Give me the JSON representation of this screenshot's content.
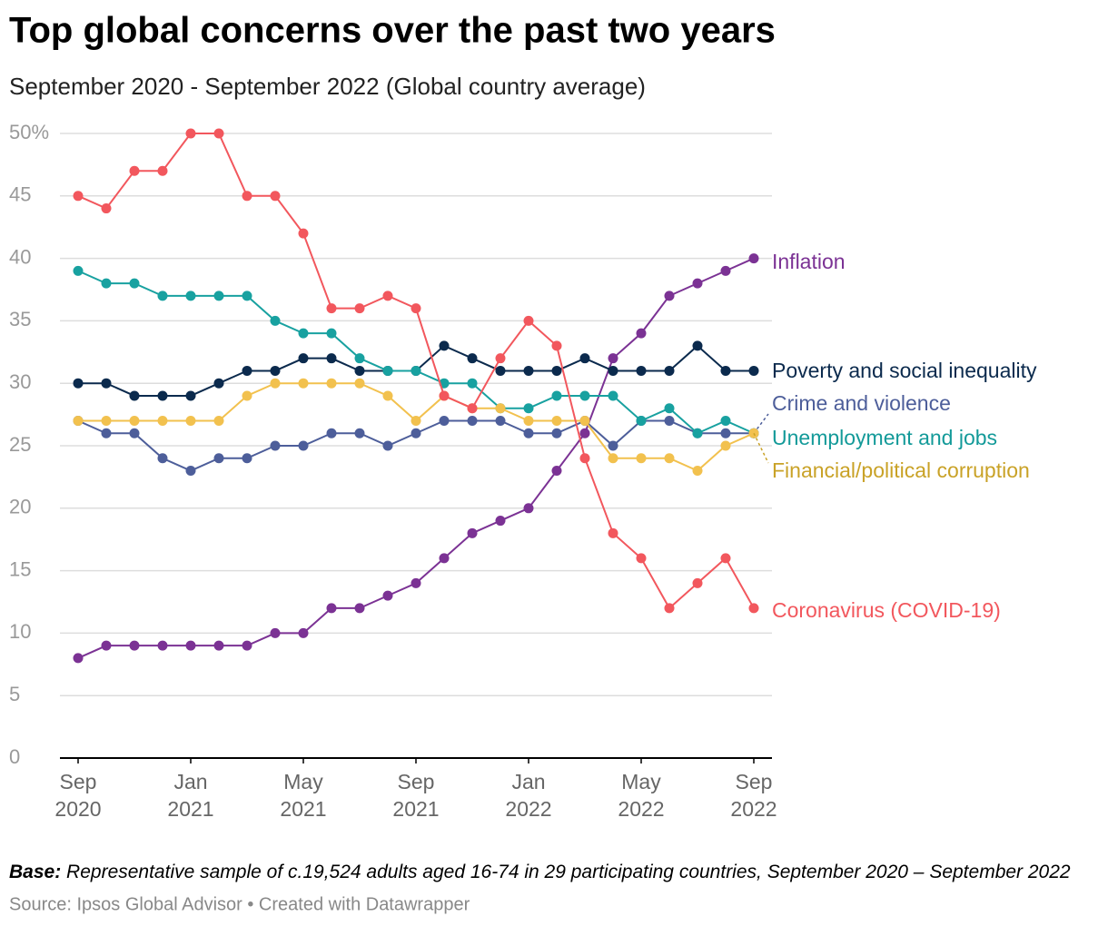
{
  "chart_data": {
    "type": "line",
    "title": "Top global concerns over the past two years",
    "subtitle": "September 2020 - September 2022 (Global country average)",
    "categories": [
      "Sep 2020",
      null,
      null,
      null,
      "Jan 2021",
      null,
      null,
      null,
      "May 2021",
      null,
      null,
      null,
      "Sep 2021",
      null,
      null,
      null,
      "Jan 2022",
      null,
      null,
      null,
      "May 2022",
      null,
      null,
      null,
      "Sep 2022"
    ],
    "ylim": [
      0,
      50
    ],
    "yticks": [
      0,
      5,
      10,
      15,
      20,
      25,
      30,
      35,
      40,
      45,
      {
        "value": 50,
        "label": "50%"
      }
    ],
    "grid": true,
    "series": [
      {
        "name": "Inflation",
        "color": "#7b3294",
        "values": [
          8,
          9,
          9,
          9,
          9,
          9,
          9,
          10,
          10,
          12,
          12,
          13,
          14,
          16,
          18,
          19,
          20,
          23,
          26,
          32,
          34,
          37,
          38,
          39,
          40
        ]
      },
      {
        "name": "Poverty and social inequality",
        "color": "#0b2a4d",
        "values": [
          30,
          30,
          29,
          29,
          29,
          30,
          31,
          31,
          32,
          32,
          31,
          31,
          31,
          33,
          32,
          31,
          31,
          31,
          32,
          31,
          31,
          31,
          33,
          31,
          31
        ]
      },
      {
        "name": "Crime and violence",
        "color": "#4d5e9a",
        "values": [
          27,
          26,
          26,
          24,
          23,
          24,
          24,
          25,
          25,
          26,
          26,
          25,
          26,
          27,
          27,
          27,
          26,
          26,
          27,
          25,
          27,
          27,
          26,
          26,
          26
        ]
      },
      {
        "name": "Unemployment and jobs",
        "color": "#18a1a0",
        "values": [
          39,
          38,
          38,
          37,
          37,
          37,
          37,
          35,
          34,
          34,
          32,
          31,
          31,
          30,
          30,
          28,
          28,
          29,
          29,
          29,
          27,
          28,
          26,
          27,
          26
        ]
      },
      {
        "name": "Financial/political corruption",
        "color": "#f2c14e",
        "values": [
          27,
          27,
          27,
          27,
          27,
          27,
          29,
          30,
          30,
          30,
          30,
          29,
          27,
          29,
          28,
          28,
          27,
          27,
          27,
          24,
          24,
          24,
          23,
          25,
          26
        ]
      },
      {
        "name": "Coronavirus (COVID-19)",
        "color": "#f2575d",
        "values": [
          45,
          44,
          47,
          47,
          50,
          50,
          45,
          45,
          42,
          36,
          36,
          37,
          36,
          29,
          28,
          32,
          35,
          33,
          24,
          18,
          16,
          12,
          14,
          16,
          12
        ]
      }
    ],
    "footnote": {
      "label": "Base:",
      "text": "Representative sample of c.19,524 adults aged 16-74 in 29 participating countries, September 2020 – September 2022"
    },
    "source": "Source: Ipsos Global Advisor • Created with Datawrapper"
  }
}
